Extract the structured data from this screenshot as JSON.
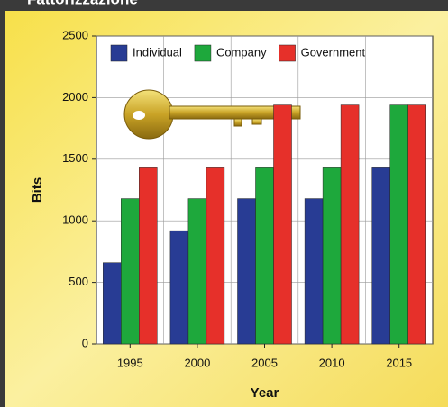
{
  "chart_data": {
    "type": "bar",
    "title": "Fattorizzazione",
    "categories": [
      "1995",
      "2000",
      "2005",
      "2010",
      "2015"
    ],
    "series": [
      {
        "name": "Individual",
        "color": "#283c94",
        "values": [
          660,
          920,
          1180,
          1180,
          1430
        ]
      },
      {
        "name": "Company",
        "color": "#1ea83c",
        "values": [
          1180,
          1180,
          1430,
          1430,
          1940
        ]
      },
      {
        "name": "Government",
        "color": "#e6302a",
        "values": [
          1430,
          1430,
          1940,
          1940,
          1940
        ]
      }
    ],
    "xlabel": "Year",
    "ylabel": "Bits",
    "ylim": [
      0,
      2500
    ],
    "yticks": [
      0,
      500,
      1000,
      1500,
      2000,
      2500
    ],
    "grid": true,
    "legend": "top"
  }
}
